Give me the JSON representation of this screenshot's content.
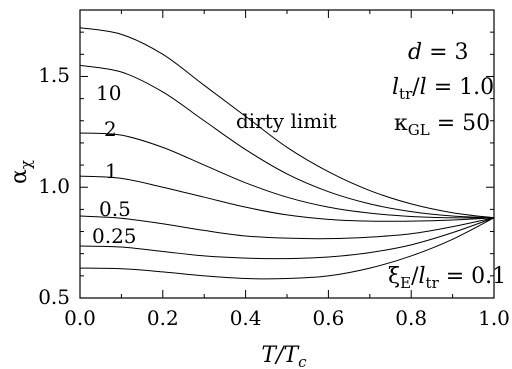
{
  "chart_data": {
    "type": "line",
    "title": "",
    "xlabel": "T/Tc",
    "ylabel": "αχ",
    "xlim": [
      0.0,
      1.0
    ],
    "ylim": [
      0.5,
      1.8
    ],
    "x_ticks": [
      "0.0",
      "0.2",
      "0.4",
      "0.6",
      "0.8",
      "1.0"
    ],
    "y_ticks": [
      "0.5",
      "1.0",
      "1.5"
    ],
    "grid": false,
    "legend": "none",
    "series": [
      {
        "name": "dirty limit",
        "points": [
          [
            0.0,
            1.72
          ],
          [
            0.1,
            1.69
          ],
          [
            0.2,
            1.6
          ],
          [
            0.3,
            1.46
          ],
          [
            0.4,
            1.32
          ],
          [
            0.5,
            1.18
          ],
          [
            0.6,
            1.07
          ],
          [
            0.7,
            0.985
          ],
          [
            0.8,
            0.925
          ],
          [
            0.9,
            0.885
          ],
          [
            1.0,
            0.862
          ]
        ]
      },
      {
        "name": "10",
        "points": [
          [
            0.0,
            1.55
          ],
          [
            0.1,
            1.52
          ],
          [
            0.2,
            1.43
          ],
          [
            0.3,
            1.3
          ],
          [
            0.4,
            1.17
          ],
          [
            0.5,
            1.06
          ],
          [
            0.6,
            0.98
          ],
          [
            0.7,
            0.925
          ],
          [
            0.8,
            0.89
          ],
          [
            0.9,
            0.87
          ],
          [
            1.0,
            0.862
          ]
        ]
      },
      {
        "name": "2",
        "points": [
          [
            0.0,
            1.245
          ],
          [
            0.1,
            1.235
          ],
          [
            0.2,
            1.18
          ],
          [
            0.3,
            1.1
          ],
          [
            0.4,
            1.02
          ],
          [
            0.5,
            0.955
          ],
          [
            0.6,
            0.91
          ],
          [
            0.7,
            0.883
          ],
          [
            0.8,
            0.868
          ],
          [
            0.9,
            0.862
          ],
          [
            1.0,
            0.862
          ]
        ]
      },
      {
        "name": "1",
        "points": [
          [
            0.0,
            1.05
          ],
          [
            0.1,
            1.04
          ],
          [
            0.2,
            1.0
          ],
          [
            0.3,
            0.955
          ],
          [
            0.4,
            0.91
          ],
          [
            0.5,
            0.875
          ],
          [
            0.6,
            0.855
          ],
          [
            0.7,
            0.847
          ],
          [
            0.8,
            0.847
          ],
          [
            0.9,
            0.852
          ],
          [
            1.0,
            0.862
          ]
        ]
      },
      {
        "name": "0.5",
        "points": [
          [
            0.0,
            0.87
          ],
          [
            0.1,
            0.86
          ],
          [
            0.2,
            0.835
          ],
          [
            0.3,
            0.805
          ],
          [
            0.4,
            0.78
          ],
          [
            0.5,
            0.77
          ],
          [
            0.6,
            0.768
          ],
          [
            0.7,
            0.775
          ],
          [
            0.8,
            0.79
          ],
          [
            0.9,
            0.822
          ],
          [
            1.0,
            0.862
          ]
        ]
      },
      {
        "name": "0.25",
        "points": [
          [
            0.0,
            0.735
          ],
          [
            0.1,
            0.73
          ],
          [
            0.2,
            0.71
          ],
          [
            0.3,
            0.69
          ],
          [
            0.4,
            0.68
          ],
          [
            0.5,
            0.678
          ],
          [
            0.6,
            0.685
          ],
          [
            0.7,
            0.705
          ],
          [
            0.8,
            0.74
          ],
          [
            0.9,
            0.795
          ],
          [
            1.0,
            0.862
          ]
        ]
      },
      {
        "name": "0.1",
        "points": [
          [
            0.0,
            0.635
          ],
          [
            0.1,
            0.632
          ],
          [
            0.2,
            0.618
          ],
          [
            0.3,
            0.6
          ],
          [
            0.4,
            0.588
          ],
          [
            0.5,
            0.588
          ],
          [
            0.6,
            0.6
          ],
          [
            0.7,
            0.635
          ],
          [
            0.8,
            0.69
          ],
          [
            0.9,
            0.765
          ],
          [
            1.0,
            0.862
          ]
        ]
      }
    ],
    "annotations": {
      "curve_label_dirty": "dirty limit",
      "curve_label_10": "10",
      "curve_label_2": "2",
      "curve_label_1": "1",
      "curve_label_05": "0.5",
      "curve_label_025": "0.25",
      "curve_label_01": "ξE/ltr = 0.1",
      "param_d": "d = 3",
      "param_ltr": "ltr/l = 1.0",
      "param_kappa": "κGL = 50"
    }
  },
  "labels": {
    "x_axis_T": "T/T",
    "x_axis_sub": "c",
    "y_axis_alpha": "α",
    "y_axis_sub": "χ",
    "d_text": "d",
    "d_rest": " = 3",
    "l_text": "l",
    "l_sub": "tr",
    "l_rest": "/",
    "l_text2": "l",
    "l_val": " = 1.0",
    "kappa_text": "κ",
    "kappa_sub": "GL",
    "kappa_val": " = 50",
    "xi_text": "ξ",
    "xi_sub": "E",
    "xi_mid": "/",
    "xi_l": "l",
    "xi_lsub": "tr",
    "xi_val": " = 0.1",
    "lbl_10": "10",
    "lbl_2": "2",
    "lbl_1": "1",
    "lbl_05": "0.5",
    "lbl_025": "0.25",
    "lbl_dirty": "dirty limit"
  }
}
